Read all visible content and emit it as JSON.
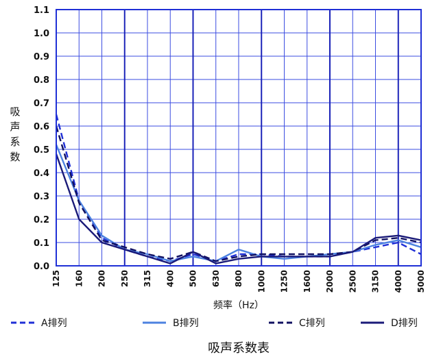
{
  "chart_data": {
    "type": "line",
    "title": "",
    "caption": "吸声系数表",
    "xlabel": "频率（Hz）",
    "ylabel": "吸声系数",
    "categories": [
      "125",
      "160",
      "200",
      "250",
      "315",
      "400",
      "500",
      "630",
      "800",
      "1000",
      "1250",
      "1600",
      "2000",
      "2500",
      "3150",
      "4000",
      "5000"
    ],
    "ylim": [
      0,
      1.1
    ],
    "yticks": [
      "0.0",
      "0.1",
      "0.2",
      "0.3",
      "0.4",
      "0.5",
      "0.6",
      "0.7",
      "0.8",
      "0.9",
      "1.0",
      "1.1"
    ],
    "grid": true,
    "legend_position": "bottom",
    "series": [
      {
        "name": "A排列",
        "style": "dashed",
        "color": "#1f2fd6",
        "values": [
          0.65,
          0.28,
          0.12,
          0.07,
          0.04,
          0.02,
          0.05,
          0.02,
          0.05,
          0.05,
          0.04,
          0.04,
          0.04,
          0.06,
          0.08,
          0.1,
          0.05
        ]
      },
      {
        "name": "B排列",
        "style": "solid",
        "color": "#4c82e0",
        "values": [
          0.52,
          0.28,
          0.13,
          0.07,
          0.05,
          0.02,
          0.04,
          0.02,
          0.07,
          0.04,
          0.03,
          0.04,
          0.05,
          0.06,
          0.09,
          0.11,
          0.08
        ]
      },
      {
        "name": "C排列",
        "style": "dashed",
        "color": "#101060",
        "values": [
          0.6,
          0.27,
          0.11,
          0.08,
          0.05,
          0.03,
          0.06,
          0.02,
          0.04,
          0.05,
          0.05,
          0.05,
          0.05,
          0.06,
          0.11,
          0.12,
          0.1
        ]
      },
      {
        "name": "D排列",
        "style": "solid",
        "color": "#1a1a78",
        "values": [
          0.48,
          0.2,
          0.1,
          0.07,
          0.04,
          0.01,
          0.06,
          0.01,
          0.03,
          0.04,
          0.04,
          0.04,
          0.04,
          0.06,
          0.12,
          0.13,
          0.11
        ]
      }
    ]
  }
}
